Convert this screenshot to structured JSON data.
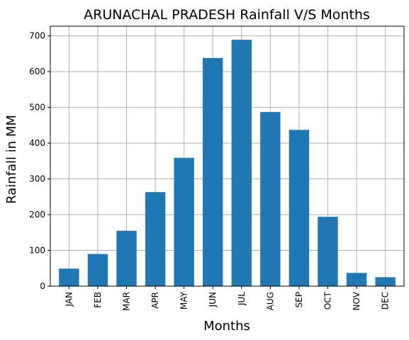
{
  "chart_data": {
    "type": "bar",
    "title": "ARUNACHAL PRADESH Rainfall V/S Months",
    "xlabel": "Months",
    "ylabel": "Rainfall in MM",
    "categories": [
      "JAN",
      "FEB",
      "MAR",
      "APR",
      "MAY",
      "JUN",
      "JUL",
      "AUG",
      "SEP",
      "OCT",
      "NOV",
      "DEC"
    ],
    "values": [
      49,
      90,
      155,
      263,
      359,
      638,
      689,
      487,
      437,
      194,
      37,
      25
    ],
    "ylim": [
      0,
      727
    ],
    "yticks": [
      0,
      100,
      200,
      300,
      400,
      500,
      600,
      700
    ],
    "grid": true,
    "bar_color": "#1f77b4",
    "grid_color": "#b0b0b0"
  }
}
